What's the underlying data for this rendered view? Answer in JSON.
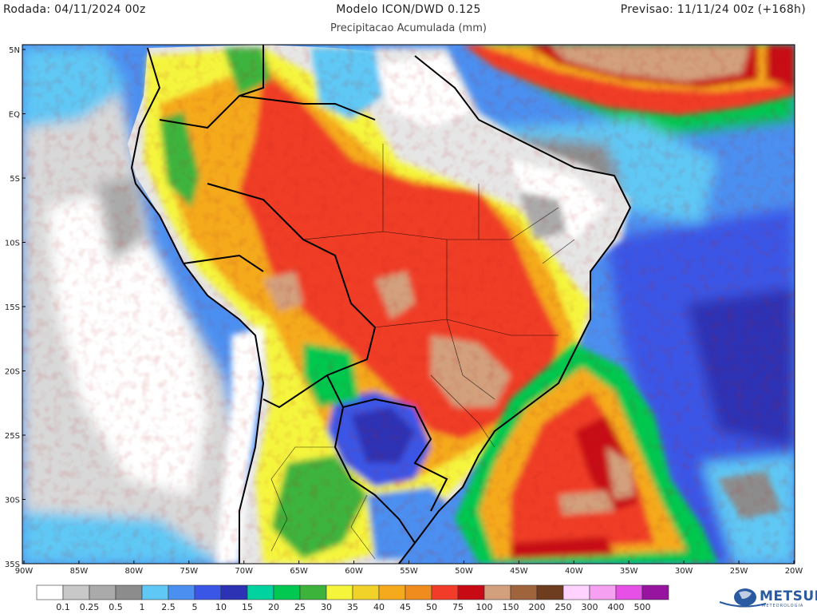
{
  "header": {
    "left": "Rodada: 04/11/2024 00z",
    "center": "Modelo ICON/DWD 0.125",
    "right": "Previsao: 11/11/24 00z (+168h)",
    "subtitle": "Precipitacao Acumulada (mm)"
  },
  "axes": {
    "lat_labels": [
      "5N",
      "EQ",
      "5S",
      "10S",
      "15S",
      "20S",
      "25S",
      "30S",
      "35S"
    ],
    "lon_labels": [
      "90W",
      "85W",
      "80W",
      "75W",
      "70W",
      "65W",
      "60W",
      "55W",
      "50W",
      "45W",
      "40W",
      "35W",
      "30W",
      "25W",
      "20W"
    ]
  },
  "legend": {
    "values": [
      "0.1",
      "0.25",
      "0.5",
      "1",
      "2.5",
      "5",
      "10",
      "15",
      "20",
      "25",
      "30",
      "35",
      "40",
      "45",
      "50",
      "75",
      "100",
      "150",
      "200",
      "250",
      "300",
      "400",
      "500"
    ],
    "colors": [
      "#ffffff",
      "#c8c8c8",
      "#aaaaaa",
      "#8c8c8c",
      "#5fc8f5",
      "#4b8ff0",
      "#3a56e6",
      "#2d32b4",
      "#00d2a0",
      "#00c850",
      "#3cb43c",
      "#f5f53c",
      "#f0d228",
      "#f5aa1e",
      "#f08c1e",
      "#f03c28",
      "#c80a14",
      "#d2a07d",
      "#a0643c",
      "#6e3c1e",
      "#ffd2ff",
      "#f5a0f0",
      "#e650e6",
      "#9614a0"
    ]
  },
  "logo": {
    "text": "METSUL",
    "subtext": "METEOROLOGIA"
  },
  "colors": {
    "ocean_light": "#5fc8f5",
    "ocean_mid": "#4b8ff0",
    "ocean_deep": "#3a56e6",
    "land_dry": "#e6e6e6",
    "rain_red": "#f03c28",
    "rain_orange": "#f5aa1e",
    "rain_yellow": "#f5f53c",
    "rain_brown": "#d2a07d",
    "rain_green": "#3cb43c"
  }
}
